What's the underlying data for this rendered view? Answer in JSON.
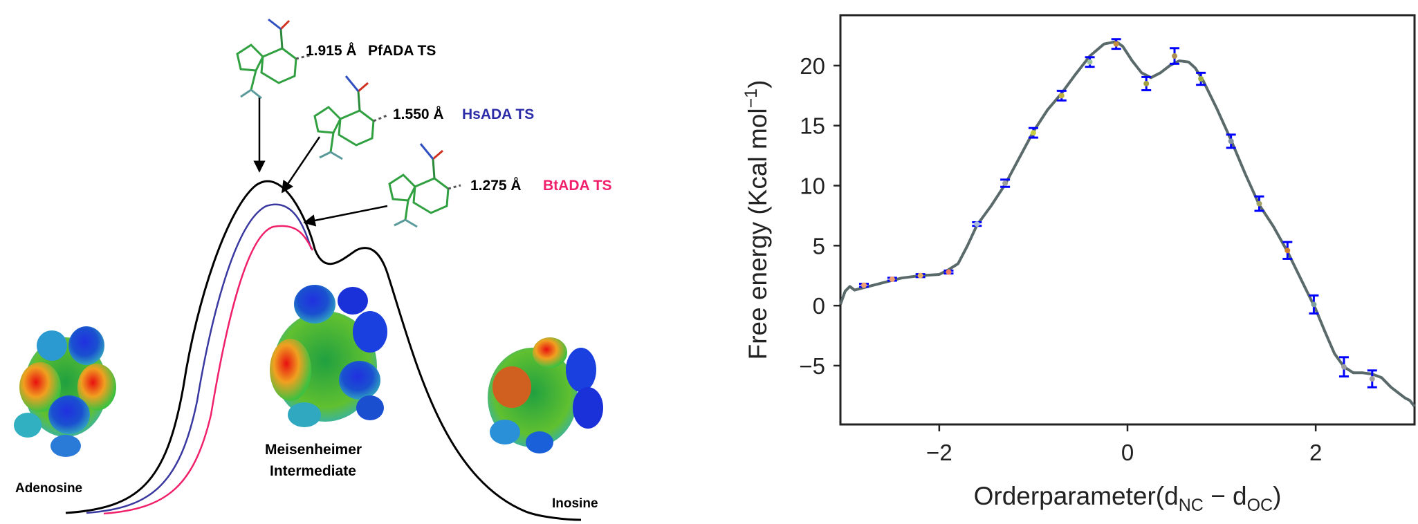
{
  "left_panel": {
    "ts_labels": [
      {
        "distance": "1.915 Å",
        "enzyme": "PfADA TS",
        "color": "#000000"
      },
      {
        "distance": "1.550 Å",
        "enzyme": "HsADA TS",
        "color": "#2c2ca8"
      },
      {
        "distance": "1.275 Å",
        "enzyme": "BtADA TS",
        "color": "#f0206a"
      }
    ],
    "species": {
      "adenosine": "Adenosine",
      "intermediate_line1": "Meisenheimer",
      "intermediate_line2": "Intermediate",
      "inosine": "Inosine"
    },
    "curve_colors": {
      "pfada": "#000000",
      "hsada": "#3838a0",
      "btada": "#f0206a"
    }
  },
  "chart_data": {
    "type": "line",
    "xlabel": "Orderparameter(d_NC − d_OC)",
    "xlabel_parts": {
      "main": "Orderparameter(d",
      "sub1": "NC",
      "mid": " − d",
      "sub2": "OC",
      "end": ")"
    },
    "ylabel": "Free energy (Kcal mol⁻¹)",
    "ylabel_parts": {
      "main": "Free energy (Kcal mol",
      "sup": "−1",
      "end": ")"
    },
    "xlim": [
      -3.05,
      3.05
    ],
    "ylim": [
      -9.9,
      24.2
    ],
    "xticks": [
      -2,
      0,
      2
    ],
    "xtick_labels": [
      "−2",
      "0",
      "2"
    ],
    "yticks": [
      -5,
      0,
      5,
      10,
      15,
      20
    ],
    "ytick_labels": [
      "−5",
      "0",
      "5",
      "10",
      "15",
      "20"
    ],
    "grid": false,
    "series": [
      {
        "kind": "curve",
        "color": "#5a6a6a",
        "x": [
          -3.05,
          -3.0,
          -2.95,
          -2.9,
          -2.8,
          -2.6,
          -2.4,
          -2.2,
          -2.0,
          -1.9,
          -1.8,
          -1.7,
          -1.6,
          -1.45,
          -1.3,
          -1.15,
          -1.0,
          -0.85,
          -0.7,
          -0.55,
          -0.4,
          -0.25,
          -0.12,
          -0.05,
          0.05,
          0.15,
          0.25,
          0.35,
          0.45,
          0.55,
          0.65,
          0.72,
          0.8,
          0.95,
          1.1,
          1.25,
          1.4,
          1.55,
          1.7,
          1.85,
          2.0,
          2.1,
          2.2,
          2.3,
          2.4,
          2.5,
          2.6,
          2.7,
          2.8,
          2.9,
          2.95,
          3.0,
          3.05
        ],
        "y": [
          0.1,
          1.2,
          1.6,
          1.3,
          1.5,
          1.9,
          2.3,
          2.5,
          2.6,
          3.0,
          3.5,
          5.0,
          6.7,
          8.3,
          10.1,
          12.3,
          14.5,
          16.3,
          17.7,
          19.3,
          20.8,
          21.8,
          22.0,
          21.6,
          20.4,
          19.4,
          19.0,
          19.4,
          20.0,
          20.4,
          20.3,
          19.8,
          18.8,
          16.4,
          13.8,
          11.0,
          8.4,
          6.6,
          4.5,
          2.1,
          -0.3,
          -2.2,
          -4.0,
          -5.1,
          -5.6,
          -5.6,
          -5.7,
          -6.0,
          -6.8,
          -7.4,
          -7.7,
          -7.9,
          -8.4
        ]
      },
      {
        "kind": "points_with_errorbars",
        "color": "#0000ff",
        "x": [
          -2.8,
          -2.5,
          -2.2,
          -1.9,
          -1.6,
          -1.3,
          -1.0,
          -0.7,
          -0.4,
          -0.12,
          0.2,
          0.5,
          0.78,
          1.1,
          1.4,
          1.7,
          1.98,
          2.3,
          2.6
        ],
        "y": [
          1.7,
          2.2,
          2.5,
          2.8,
          6.8,
          10.2,
          14.4,
          17.5,
          20.3,
          21.8,
          18.5,
          20.8,
          18.9,
          13.7,
          8.5,
          4.6,
          0.1,
          -5.1,
          -6.1
        ],
        "err": [
          0.12,
          0.12,
          0.12,
          0.12,
          0.15,
          0.3,
          0.4,
          0.4,
          0.4,
          0.4,
          0.55,
          0.65,
          0.5,
          0.55,
          0.6,
          0.7,
          0.75,
          0.8,
          0.7
        ],
        "marker_colors": [
          "#f0a070",
          "#f0a070",
          "#e8b060",
          "#f08060",
          "#a8b8d8",
          "#a0a0a0",
          "#c8d040",
          "#c0b040",
          "#a0c0a0",
          "#c09040",
          "#a0a040",
          "#b09050",
          "#a0b040",
          "#8090a0",
          "#a0a060",
          "#d08030",
          "#80a0a0",
          "#a0a0a0",
          "#a0a0a0"
        ]
      }
    ]
  }
}
